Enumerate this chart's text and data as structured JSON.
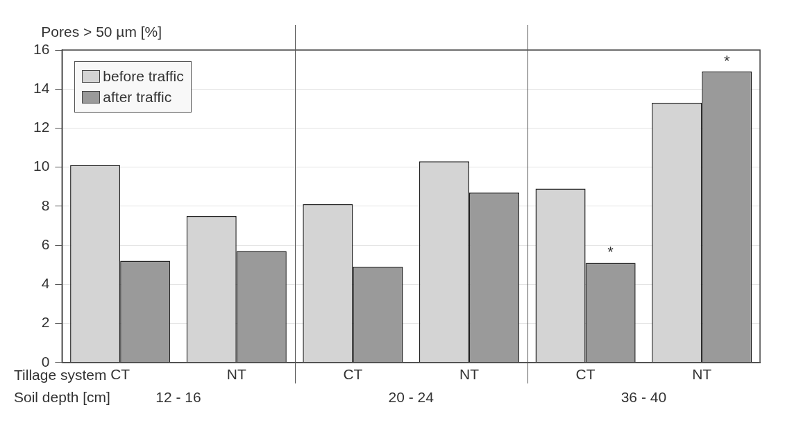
{
  "chart_data": {
    "type": "bar",
    "ylabel": "Pores > 50 µm [%]",
    "xlabel": "Tillage system",
    "categories": [
      "CT",
      "NT",
      "CT",
      "NT",
      "CT",
      "NT"
    ],
    "series": [
      {
        "name": "before traffic",
        "color": "#d4d4d4",
        "values": [
          10.1,
          7.5,
          8.1,
          10.3,
          8.9,
          13.3
        ]
      },
      {
        "name": "after traffic",
        "color": "#9a9a9a",
        "values": [
          5.2,
          5.7,
          4.9,
          8.7,
          5.1,
          14.9
        ],
        "value_labels": [
          null,
          null,
          null,
          null,
          "*",
          "*"
        ]
      }
    ],
    "annotations": [
      "Soil depth [cm]",
      "12 - 16",
      "20 - 24",
      "36 - 40"
    ],
    "ylim": [
      0,
      16
    ],
    "yticks": [
      0,
      2,
      4,
      6,
      8,
      10,
      12,
      14,
      16
    ],
    "grid": "y",
    "legend": "top left"
  }
}
